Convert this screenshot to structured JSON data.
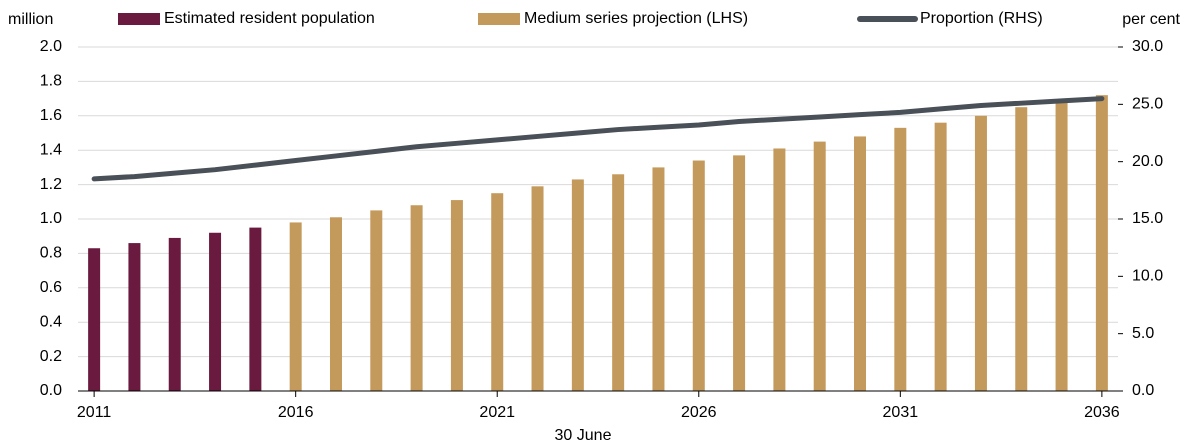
{
  "chart_data": {
    "type": "bar",
    "y_label": "million",
    "y2_label": "per cent",
    "x_label": "30 June",
    "x": [
      2011,
      2012,
      2013,
      2014,
      2015,
      2016,
      2017,
      2018,
      2019,
      2020,
      2021,
      2022,
      2023,
      2024,
      2025,
      2026,
      2027,
      2028,
      2029,
      2030,
      2031,
      2032,
      2033,
      2034,
      2035,
      2036
    ],
    "xlim": [
      2010.6,
      2036.4
    ],
    "xticks": [
      2011,
      2016,
      2021,
      2026,
      2031,
      2036
    ],
    "ylim": [
      0,
      2
    ],
    "yticks": [
      {
        "value": 0,
        "label": "0.0"
      },
      0.2,
      0.4,
      0.6,
      0.8,
      {
        "value": 1,
        "label": "1.0"
      },
      1.2,
      1.4,
      1.6,
      1.8,
      {
        "value": 2,
        "label": "2.0"
      }
    ],
    "y2lim": [
      0,
      30
    ],
    "y2ticks": [
      {
        "value": 0,
        "label": "0.0"
      },
      {
        "value": 5,
        "label": "5.0"
      },
      {
        "value": 10,
        "label": "10.0"
      },
      {
        "value": 15,
        "label": "15.0"
      },
      {
        "value": 20,
        "label": "20.0"
      },
      {
        "value": 25,
        "label": "25.0"
      },
      {
        "value": 30,
        "label": "30.0"
      }
    ],
    "grid": true,
    "series": [
      {
        "name": "Estimated resident population",
        "type": "bar",
        "color": "#6b1a3f",
        "values": [
          0.83,
          0.86,
          0.89,
          0.92,
          0.95,
          null,
          null,
          null,
          null,
          null,
          null,
          null,
          null,
          null,
          null,
          null,
          null,
          null,
          null,
          null,
          null,
          null,
          null,
          null,
          null,
          null
        ]
      },
      {
        "name": "Medium series projection (LHS)",
        "type": "bar",
        "color": "#c49a5c",
        "values": [
          null,
          null,
          null,
          null,
          null,
          0.98,
          1.01,
          1.05,
          1.08,
          1.11,
          1.15,
          1.19,
          1.23,
          1.26,
          1.3,
          1.34,
          1.37,
          1.41,
          1.45,
          1.48,
          1.53,
          1.56,
          1.6,
          1.65,
          1.68,
          1.72
        ]
      },
      {
        "name": "Proportion (RHS)",
        "type": "line",
        "axis": "y2",
        "color": "#4a5058",
        "values": [
          18.5,
          18.7,
          19.0,
          19.3,
          19.7,
          20.1,
          20.5,
          20.9,
          21.3,
          21.6,
          21.9,
          22.2,
          22.5,
          22.8,
          23.0,
          23.2,
          23.5,
          23.7,
          23.9,
          24.1,
          24.3,
          24.6,
          24.9,
          25.1,
          25.3,
          25.5
        ]
      }
    ]
  }
}
